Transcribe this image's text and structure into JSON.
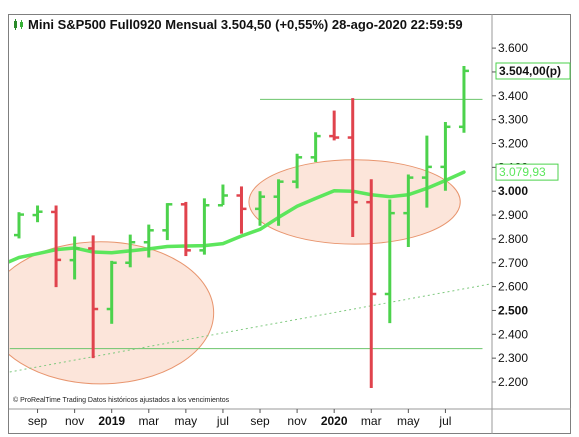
{
  "header": {
    "title": "Mini S&P500 Full0920 Mensual 3.504,50 (+0,55%) 28-ago-2020 22:59:59"
  },
  "footer": {
    "note": "© ProRealTime Trading Datos históricos ajustados a los vencimientos"
  },
  "colors": {
    "up": "#4cd24c",
    "down": "#e0434d",
    "ma": "#5ce65c",
    "hline": "#6cc56c",
    "trend": "#7fc97f",
    "ellipse_fill": "#fbe1d3",
    "ellipse_stroke": "#e8956e",
    "last_label_border": "#4cd24c",
    "ma_label_text": "#5ce65c"
  },
  "chart_data": {
    "type": "ohlc",
    "title": "Mini S&P500 Full0920 Mensual",
    "ylim": [
      2150,
      3640
    ],
    "yticks": [
      "2.200",
      "2.300",
      "2.400",
      "2.500",
      "2.600",
      "2.700",
      "2.800",
      "2.900",
      "3.000",
      "3.100",
      "3.200",
      "3.300",
      "3.400",
      "3.500",
      "3.600"
    ],
    "ytick_values": [
      2200,
      2300,
      2400,
      2500,
      2600,
      2700,
      2800,
      2900,
      3000,
      3100,
      3200,
      3300,
      3400,
      3500,
      3600
    ],
    "bold_ytick_values": [
      2500,
      3000
    ],
    "xticks": [
      {
        "label": "sep",
        "index": 1,
        "bold": false
      },
      {
        "label": "nov",
        "index": 3,
        "bold": false
      },
      {
        "label": "2019",
        "index": 5,
        "bold": true
      },
      {
        "label": "mar",
        "index": 7,
        "bold": false
      },
      {
        "label": "may",
        "index": 9,
        "bold": false
      },
      {
        "label": "jul",
        "index": 11,
        "bold": false
      },
      {
        "label": "sep",
        "index": 13,
        "bold": false
      },
      {
        "label": "nov",
        "index": 15,
        "bold": false
      },
      {
        "label": "2020",
        "index": 17,
        "bold": true
      },
      {
        "label": "mar",
        "index": 19,
        "bold": false
      },
      {
        "label": "may",
        "index": 21,
        "bold": false
      },
      {
        "label": "jul",
        "index": 23,
        "bold": false
      }
    ],
    "candles": [
      {
        "o": 2816,
        "h": 2912,
        "l": 2802,
        "c": 2902
      },
      {
        "o": 2900,
        "h": 2940,
        "l": 2870,
        "c": 2914
      },
      {
        "o": 2913,
        "h": 2940,
        "l": 2598,
        "c": 2712
      },
      {
        "o": 2711,
        "h": 2810,
        "l": 2630,
        "c": 2760
      },
      {
        "o": 2760,
        "h": 2815,
        "l": 2300,
        "c": 2506
      },
      {
        "o": 2506,
        "h": 2708,
        "l": 2444,
        "c": 2700
      },
      {
        "o": 2700,
        "h": 2818,
        "l": 2681,
        "c": 2786
      },
      {
        "o": 2786,
        "h": 2860,
        "l": 2722,
        "c": 2836
      },
      {
        "o": 2836,
        "h": 2950,
        "l": 2795,
        "c": 2945
      },
      {
        "o": 2945,
        "h": 2955,
        "l": 2728,
        "c": 2752
      },
      {
        "o": 2752,
        "h": 2970,
        "l": 2734,
        "c": 2941
      },
      {
        "o": 2941,
        "h": 3028,
        "l": 2942,
        "c": 2982
      },
      {
        "o": 2982,
        "h": 3020,
        "l": 2822,
        "c": 2926
      },
      {
        "o": 2926,
        "h": 3000,
        "l": 2855,
        "c": 2977
      },
      {
        "o": 2977,
        "h": 3050,
        "l": 2855,
        "c": 3040
      },
      {
        "o": 3040,
        "h": 3157,
        "l": 3012,
        "c": 3142
      },
      {
        "o": 3142,
        "h": 3247,
        "l": 3122,
        "c": 3231
      },
      {
        "o": 3231,
        "h": 3338,
        "l": 3213,
        "c": 3225
      },
      {
        "o": 3225,
        "h": 3390,
        "l": 2808,
        "c": 2954
      },
      {
        "o": 2954,
        "h": 3050,
        "l": 2175,
        "c": 2569
      },
      {
        "o": 2569,
        "h": 2965,
        "l": 2447,
        "c": 2908
      },
      {
        "o": 2908,
        "h": 3070,
        "l": 2766,
        "c": 3057
      },
      {
        "o": 3057,
        "h": 3233,
        "l": 2931,
        "c": 3102
      },
      {
        "o": 3102,
        "h": 3290,
        "l": 3002,
        "c": 3270
      },
      {
        "o": 3270,
        "h": 3525,
        "l": 3245,
        "c": 3504.5
      }
    ],
    "moving_average": [
      2722,
      2738,
      2755,
      2762,
      2745,
      2742,
      2750,
      2758,
      2768,
      2770,
      2772,
      2780,
      2812,
      2840,
      2890,
      2937,
      2970,
      3002,
      3000,
      2985,
      2977,
      2985,
      3012,
      3045,
      3080
    ],
    "last_price_label": "3.504,00(p)",
    "last_price_value": 3504,
    "ma_label": "3.079,93",
    "ma_label_value": 3080,
    "hidden_label_fragment": "3.100",
    "hlines": [
      {
        "value": 3385,
        "from_index": 13,
        "to_index": 25
      },
      {
        "value": 2340,
        "from_index": -0.5,
        "to_index": 25
      }
    ],
    "trendline": {
      "from_index": -0.5,
      "from_value": 2242,
      "to_index": 25.5,
      "to_value": 2612
    },
    "ellipses": [
      {
        "cx_index": 4.4,
        "cy_value": 2490,
        "rx_index": 6.1,
        "ry_value": 298
      },
      {
        "cx_index": 18.1,
        "cy_value": 2955,
        "rx_index": 5.7,
        "ry_value": 177
      }
    ]
  }
}
